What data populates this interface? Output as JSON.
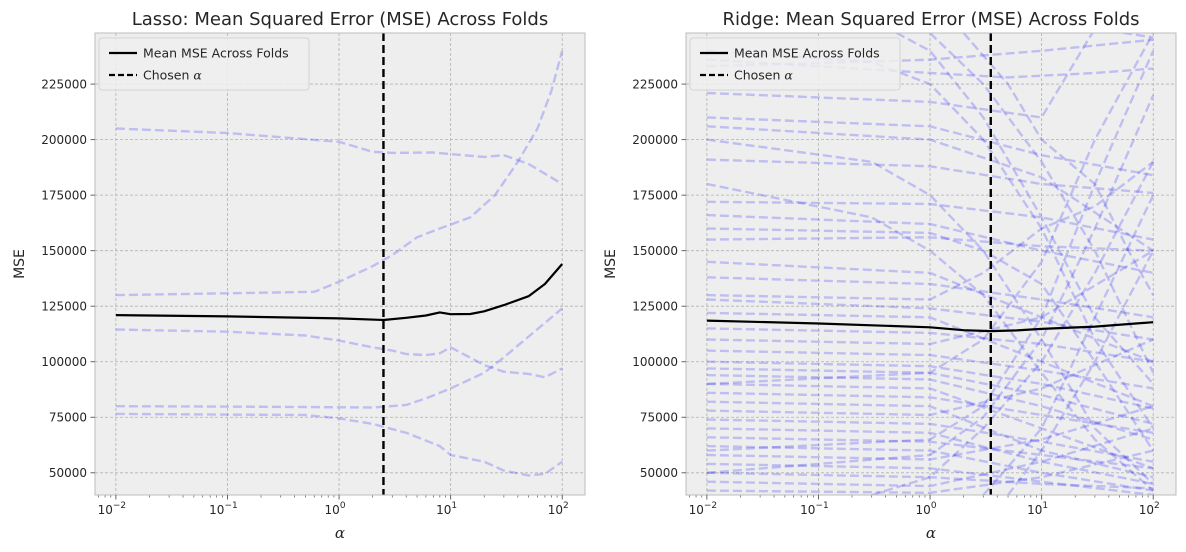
{
  "chart_data": [
    {
      "type": "line",
      "title": "Lasso: Mean Squared Error (MSE) Across Folds",
      "xlabel": "α",
      "ylabel": "MSE",
      "xscale": "log",
      "xlim": [
        0.0065,
        160
      ],
      "ylim": [
        40000,
        248000
      ],
      "x_ticks": [
        {
          "value": 0.01,
          "base": "10",
          "exp": "−2"
        },
        {
          "value": 0.1,
          "base": "10",
          "exp": "−1"
        },
        {
          "value": 1,
          "base": "10",
          "exp": "0"
        },
        {
          "value": 10,
          "base": "10",
          "exp": "1"
        },
        {
          "value": 100,
          "base": "10",
          "exp": "2"
        }
      ],
      "y_ticks": [
        50000,
        75000,
        100000,
        125000,
        150000,
        175000,
        200000,
        225000
      ],
      "grid": true,
      "legend": {
        "placement": "top-left",
        "entries": [
          {
            "label": "Mean MSE Across Folds",
            "style": "solid",
            "color": "#000000"
          },
          {
            "label": "Chosen ",
            "symbol": "α",
            "style": "dashed",
            "color": "#000000"
          }
        ]
      },
      "chosen_alpha": 2.5,
      "mean": {
        "x": [
          0.01,
          0.1,
          1,
          2.5,
          4,
          6,
          8,
          10,
          15,
          20,
          30,
          50,
          70,
          100
        ],
        "y": [
          121000,
          120400,
          119500,
          118800,
          119800,
          120800,
          122200,
          121400,
          121500,
          122700,
          125500,
          129500,
          135000,
          144000
        ]
      },
      "folds": [
        {
          "x": [
            0.01,
            0.1,
            1,
            2,
            3,
            7,
            10,
            20,
            30,
            50,
            100
          ],
          "y": [
            205000,
            203000,
            199000,
            194500,
            194000,
            194200,
            193500,
            192200,
            193000,
            189000,
            180000
          ]
        },
        {
          "x": [
            0.01,
            0.1,
            0.6,
            1,
            2,
            3,
            5,
            8,
            15,
            25,
            40,
            60,
            80,
            100
          ],
          "y": [
            130000,
            130800,
            131500,
            136000,
            143000,
            148000,
            156000,
            160000,
            165000,
            175000,
            190000,
            205000,
            222000,
            240000
          ]
        },
        {
          "x": [
            0.01,
            0.1,
            0.5,
            1,
            2,
            3,
            4,
            6,
            8,
            10,
            20,
            30,
            50,
            70,
            100
          ],
          "y": [
            114500,
            113500,
            111800,
            109500,
            106500,
            105000,
            103500,
            103000,
            103800,
            106500,
            98500,
            95500,
            94500,
            93000,
            97000
          ]
        },
        {
          "x": [
            0.01,
            0.1,
            0.5,
            1,
            2,
            4,
            6,
            10,
            20,
            30,
            100
          ],
          "y": [
            80000,
            79800,
            79600,
            79500,
            79400,
            80500,
            83500,
            88000,
            95000,
            102000,
            124000
          ]
        },
        {
          "x": [
            0.01,
            0.1,
            0.5,
            1,
            2,
            4,
            8,
            10,
            20,
            30,
            50,
            70,
            100
          ],
          "y": [
            76500,
            76200,
            76000,
            74500,
            72000,
            68000,
            62000,
            58000,
            55000,
            51000,
            48800,
            49500,
            55000
          ]
        }
      ]
    },
    {
      "type": "line",
      "title": "Ridge: Mean Squared Error (MSE) Across Folds",
      "xlabel": "α",
      "ylabel": "MSE",
      "xscale": "log",
      "xlim": [
        0.0065,
        160
      ],
      "ylim": [
        40000,
        248000
      ],
      "x_ticks": [
        {
          "value": 0.01,
          "base": "10",
          "exp": "−2"
        },
        {
          "value": 0.1,
          "base": "10",
          "exp": "−1"
        },
        {
          "value": 1,
          "base": "10",
          "exp": "0"
        },
        {
          "value": 10,
          "base": "10",
          "exp": "1"
        },
        {
          "value": 100,
          "base": "10",
          "exp": "2"
        }
      ],
      "y_ticks": [
        50000,
        75000,
        100000,
        125000,
        150000,
        175000,
        200000,
        225000
      ],
      "grid": true,
      "legend": {
        "placement": "top-left",
        "entries": [
          {
            "label": "Mean MSE Across Folds",
            "style": "solid",
            "color": "#000000"
          },
          {
            "label": "Chosen ",
            "symbol": "α",
            "style": "dashed",
            "color": "#000000"
          }
        ]
      },
      "chosen_alpha": 3.5,
      "mean": {
        "x": [
          0.01,
          0.1,
          1,
          2,
          3.5,
          6,
          10,
          30,
          100
        ],
        "y": [
          118500,
          117200,
          115500,
          114200,
          113800,
          114100,
          114800,
          115800,
          117800
        ]
      },
      "folds": [
        {
          "x": [
            0.01,
            1,
            5,
            30,
            100
          ],
          "y": [
            236000,
            230000,
            228000,
            230000,
            232000
          ]
        },
        {
          "x": [
            0.01,
            1,
            10,
            100
          ],
          "y": [
            233000,
            236000,
            240000,
            245000
          ]
        },
        {
          "x": [
            0.01,
            1,
            10,
            30,
            100
          ],
          "y": [
            221000,
            217000,
            210000,
            250000,
            246000
          ]
        },
        {
          "x": [
            0.01,
            1,
            10,
            100
          ],
          "y": [
            210000,
            206000,
            193000,
            184000
          ]
        },
        {
          "x": [
            0.01,
            1,
            10,
            100
          ],
          "y": [
            206000,
            200000,
            183000,
            150000
          ]
        },
        {
          "x": [
            0.01,
            1,
            10,
            100
          ],
          "y": [
            191000,
            188000,
            180000,
            176000
          ]
        },
        {
          "x": [
            0.01,
            1,
            10,
            100
          ],
          "y": [
            172000,
            171000,
            165000,
            155000
          ]
        },
        {
          "x": [
            0.01,
            1,
            10,
            100
          ],
          "y": [
            166000,
            162000,
            150000,
            140000
          ]
        },
        {
          "x": [
            0.01,
            1,
            10,
            100
          ],
          "y": [
            155000,
            156000,
            152000,
            150000
          ]
        },
        {
          "x": [
            0.01,
            1,
            10,
            100
          ],
          "y": [
            145000,
            140000,
            120000,
            100000
          ]
        },
        {
          "x": [
            0.01,
            1,
            10,
            100
          ],
          "y": [
            138000,
            135000,
            128000,
            120000
          ]
        },
        {
          "x": [
            0.01,
            1,
            10,
            100
          ],
          "y": [
            128000,
            124000,
            118000,
            110000
          ]
        },
        {
          "x": [
            0.01,
            1,
            10,
            100
          ],
          "y": [
            122000,
            120000,
            100000,
            80000
          ]
        },
        {
          "x": [
            0.01,
            1,
            10,
            100
          ],
          "y": [
            115000,
            113000,
            108000,
            100000
          ]
        },
        {
          "x": [
            0.01,
            1,
            10,
            100
          ],
          "y": [
            110000,
            108000,
            120000,
            150000
          ]
        },
        {
          "x": [
            0.01,
            1,
            10,
            100
          ],
          "y": [
            105000,
            103000,
            96000,
            88000
          ]
        },
        {
          "x": [
            0.01,
            1,
            10,
            100
          ],
          "y": [
            100000,
            98000,
            90000,
            79000
          ]
        },
        {
          "x": [
            0.01,
            1,
            10,
            100
          ],
          "y": [
            97000,
            95000,
            85000,
            72000
          ]
        },
        {
          "x": [
            0.01,
            1,
            10,
            100
          ],
          "y": [
            94000,
            92000,
            80000,
            65000
          ]
        },
        {
          "x": [
            0.01,
            1,
            10,
            100
          ],
          "y": [
            90000,
            88000,
            70000,
            52000
          ]
        },
        {
          "x": [
            0.01,
            1,
            10,
            100
          ],
          "y": [
            86000,
            84000,
            76000,
            68000
          ]
        },
        {
          "x": [
            0.01,
            1,
            10,
            100
          ],
          "y": [
            82000,
            80000,
            60000,
            48000
          ]
        },
        {
          "x": [
            0.01,
            1,
            10,
            100
          ],
          "y": [
            78000,
            76000,
            88000,
            110000
          ]
        },
        {
          "x": [
            0.01,
            1,
            10,
            100
          ],
          "y": [
            74000,
            72000,
            64000,
            55000
          ]
        },
        {
          "x": [
            0.01,
            1,
            10,
            100
          ],
          "y": [
            70000,
            68000,
            55000,
            45000
          ]
        },
        {
          "x": [
            0.01,
            1,
            10,
            100
          ],
          "y": [
            66000,
            64000,
            58000,
            52000
          ]
        },
        {
          "x": [
            0.01,
            1,
            10,
            100
          ],
          "y": [
            62000,
            60000,
            50000,
            42000
          ]
        },
        {
          "x": [
            0.01,
            1,
            10,
            100
          ],
          "y": [
            58000,
            56000,
            65000,
            80000
          ]
        },
        {
          "x": [
            0.01,
            1,
            10,
            100
          ],
          "y": [
            54000,
            52000,
            46000,
            40000
          ]
        },
        {
          "x": [
            0.01,
            1,
            10,
            100
          ],
          "y": [
            50000,
            48000,
            45000,
            43000
          ]
        },
        {
          "x": [
            0.01,
            1,
            10,
            100
          ],
          "y": [
            46000,
            44000,
            55000,
            70000
          ]
        },
        {
          "x": [
            0.01,
            1,
            10,
            100
          ],
          "y": [
            42000,
            41000,
            48000,
            60000
          ]
        },
        {
          "x": [
            0.01,
            0.3,
            1,
            3,
            10,
            30,
            100
          ],
          "y": [
            240000,
            235000,
            225000,
            200000,
            160000,
            110000,
            70000
          ]
        },
        {
          "x": [
            0.01,
            0.3,
            1,
            3,
            10,
            30,
            100
          ],
          "y": [
            200000,
            190000,
            175000,
            150000,
            110000,
            70000,
            45000
          ]
        },
        {
          "x": [
            0.01,
            0.3,
            1,
            3,
            10,
            30,
            100
          ],
          "y": [
            180000,
            165000,
            150000,
            130000,
            95000,
            65000,
            42000
          ]
        },
        {
          "x": [
            0.01,
            1,
            3,
            10,
            30,
            100
          ],
          "y": [
            60000,
            65000,
            80000,
            120000,
            180000,
            240000
          ]
        },
        {
          "x": [
            0.01,
            1,
            3,
            10,
            30,
            100
          ],
          "y": [
            50000,
            58000,
            75000,
            110000,
            160000,
            220000
          ]
        },
        {
          "x": [
            0.01,
            1,
            3,
            10,
            30,
            100
          ],
          "y": [
            90000,
            95000,
            110000,
            145000,
            200000,
            248000
          ]
        },
        {
          "x": [
            0.5,
            1,
            3,
            10,
            30,
            100
          ],
          "y": [
            248000,
            240000,
            210000,
            165000,
            120000,
            90000
          ]
        },
        {
          "x": [
            0.3,
            1,
            3,
            10,
            30,
            100
          ],
          "y": [
            40000,
            48000,
            70000,
            100000,
            140000,
            190000
          ]
        },
        {
          "x": [
            1,
            3,
            10,
            30,
            100
          ],
          "y": [
            248000,
            225000,
            190000,
            150000,
            95000
          ]
        },
        {
          "x": [
            2,
            5,
            10,
            30,
            60,
            100
          ],
          "y": [
            248000,
            225000,
            200000,
            180000,
            150000,
            130000
          ]
        },
        {
          "x": [
            3,
            10,
            30,
            100
          ],
          "y": [
            40000,
            70000,
            120000,
            175000
          ]
        },
        {
          "x": [
            5,
            10,
            30,
            100
          ],
          "y": [
            40000,
            60000,
            100000,
            150000
          ]
        },
        {
          "x": [
            0.01,
            1,
            3,
            10,
            30,
            100
          ],
          "y": [
            130000,
            128000,
            140000,
            160000,
            170000,
            190000
          ]
        },
        {
          "x": [
            0.01,
            1,
            3,
            10,
            30,
            100
          ],
          "y": [
            160000,
            158000,
            150000,
            135000,
            100000,
            60000
          ]
        }
      ]
    }
  ]
}
